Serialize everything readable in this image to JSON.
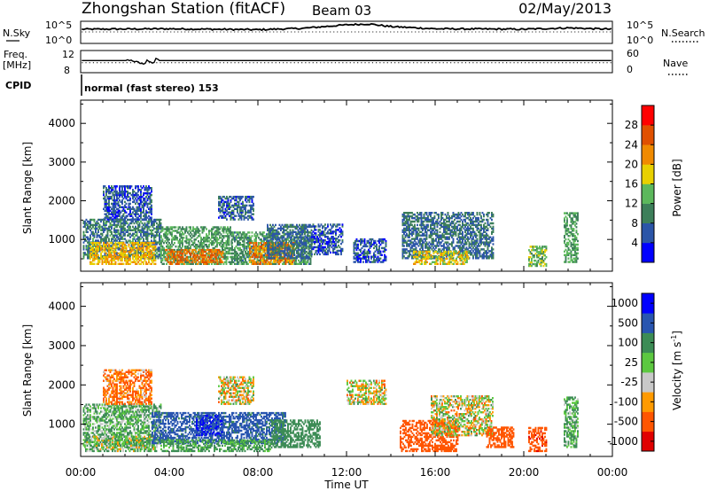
{
  "header": {
    "station": "Zhongshan Station (fitACF)",
    "beam": "Beam 03",
    "date": "02/May/2013"
  },
  "panel_nsky": {
    "left_label": "N.Sky",
    "left_ticks": [
      "10^5",
      "10^0"
    ],
    "right_ticks": [
      "10^5",
      "10^0"
    ],
    "right_label": "N.Search"
  },
  "panel_freq": {
    "left_label_1": "Freq.",
    "left_label_2": "[MHz]",
    "left_ticks": [
      "12",
      "8"
    ],
    "right_ticks": [
      "60",
      "0"
    ],
    "right_label": "Nave"
  },
  "panel_cpid": {
    "label": "CPID",
    "value": "normal (fast stereo) 153"
  },
  "x_axis": {
    "ticks": [
      "00:00",
      "04:00",
      "08:00",
      "12:00",
      "16:00",
      "20:00",
      "00:00"
    ],
    "label": "Time UT"
  },
  "power_panel": {
    "ylabel": "Slant Range [km]",
    "yticks": [
      "4000",
      "3000",
      "2000",
      "1000"
    ],
    "colorbar_label": "Power [dB]",
    "colorbar_ticks": [
      "28",
      "24",
      "20",
      "16",
      "12",
      "8",
      "4"
    ]
  },
  "velocity_panel": {
    "ylabel": "Slant Range [km]",
    "yticks": [
      "4000",
      "3000",
      "2000",
      "1000"
    ],
    "colorbar_label": "Velocity [m s",
    "colorbar_label_sup": "-1",
    "colorbar_label_end": "]",
    "colorbar_ticks": [
      "1000",
      "500",
      "100",
      "25",
      "-25",
      "-100",
      "-500",
      "-1000"
    ]
  },
  "colors": {
    "power_scale": [
      "#0000ff",
      "#2b55a8",
      "#3d7f5a",
      "#5cb85c",
      "#e8d000",
      "#f08a00",
      "#e05000",
      "#ff0000"
    ],
    "velocity_scale": [
      "#e00000",
      "#ff5500",
      "#ff9a00",
      "#c8c8c8",
      "#5cc840",
      "#3c8c55",
      "#2855b0",
      "#0000ff"
    ]
  },
  "chart_data": [
    {
      "type": "heatmap",
      "title": "Power",
      "xlabel": "Time UT",
      "ylabel": "Slant Range [km]",
      "x_range_hours": [
        0,
        24
      ],
      "ylim_km": [
        180,
        4600
      ],
      "colorbar": {
        "label": "Power [dB]",
        "range": [
          0,
          32
        ],
        "ticks": [
          4,
          8,
          12,
          16,
          20,
          24,
          28
        ]
      },
      "regions": [
        {
          "t": [
            0.1,
            3.6
          ],
          "r": [
            500,
            1500
          ],
          "level": 9
        },
        {
          "t": [
            1.0,
            3.2
          ],
          "r": [
            1500,
            2400
          ],
          "level": 6
        },
        {
          "t": [
            0.4,
            3.4
          ],
          "r": [
            350,
            900
          ],
          "level": 20
        },
        {
          "t": [
            3.6,
            6.8
          ],
          "r": [
            350,
            1300
          ],
          "level": 12
        },
        {
          "t": [
            3.8,
            6.4
          ],
          "r": [
            350,
            750
          ],
          "level": 24
        },
        {
          "t": [
            6.8,
            10.4
          ],
          "r": [
            350,
            1200
          ],
          "level": 11
        },
        {
          "t": [
            7.6,
            9.6
          ],
          "r": [
            350,
            900
          ],
          "level": 23
        },
        {
          "t": [
            8.4,
            10.4
          ],
          "r": [
            500,
            1400
          ],
          "level": 8
        },
        {
          "t": [
            10.4,
            11.8
          ],
          "r": [
            600,
            1400
          ],
          "level": 6
        },
        {
          "t": [
            6.2,
            7.8
          ],
          "r": [
            1500,
            2100
          ],
          "level": 7
        },
        {
          "t": [
            12.3,
            13.8
          ],
          "r": [
            400,
            1000
          ],
          "level": 6
        },
        {
          "t": [
            14.5,
            18.6
          ],
          "r": [
            500,
            1700
          ],
          "level": 8
        },
        {
          "t": [
            15.0,
            17.5
          ],
          "r": [
            350,
            700
          ],
          "level": 18
        },
        {
          "t": [
            20.2,
            21.0
          ],
          "r": [
            300,
            800
          ],
          "level": 14
        },
        {
          "t": [
            21.8,
            22.4
          ],
          "r": [
            400,
            1700
          ],
          "level": 12
        }
      ],
      "overview_series": {
        "nsky_log_counts": [
          {
            "hour": 0,
            "value": 3.2
          },
          {
            "hour": 4,
            "value": 3.3
          },
          {
            "hour": 8,
            "value": 3.1
          },
          {
            "hour": 10,
            "value": 3.4
          },
          {
            "hour": 12,
            "value": 4.2
          },
          {
            "hour": 13,
            "value": 4.4
          },
          {
            "hour": 14,
            "value": 3.8
          },
          {
            "hour": 16,
            "value": 3.3
          },
          {
            "hour": 20,
            "value": 3.2
          },
          {
            "hour": 22,
            "value": 3.5
          },
          {
            "hour": 24,
            "value": 3.2
          }
        ],
        "frequency_MHz": [
          {
            "hour": 0,
            "value": 10.2
          },
          {
            "hour": 2.2,
            "value": 10.2
          },
          {
            "hour": 2.6,
            "value": 9.8
          },
          {
            "hour": 3.0,
            "value": 10.0
          },
          {
            "hour": 3.4,
            "value": 10.2
          },
          {
            "hour": 24,
            "value": 10.2
          }
        ],
        "nave": 27
      }
    },
    {
      "type": "heatmap",
      "title": "Velocity",
      "xlabel": "Time UT",
      "ylabel": "Slant Range [km]",
      "x_range_hours": [
        0,
        24
      ],
      "ylim_km": [
        180,
        4600
      ],
      "colorbar": {
        "label": "Velocity [m s-1]",
        "range": [
          -1000,
          1000
        ],
        "ticks": [
          1000,
          500,
          100,
          25,
          -25,
          -100,
          -500,
          -1000
        ]
      },
      "regions": [
        {
          "t": [
            0.1,
            3.6
          ],
          "r": [
            400,
            1500
          ],
          "level": 100
        },
        {
          "t": [
            0.2,
            3.4
          ],
          "r": [
            300,
            700
          ],
          "level": 60
        },
        {
          "t": [
            1.0,
            3.2
          ],
          "r": [
            1500,
            2400
          ],
          "level": -120
        },
        {
          "t": [
            3.2,
            9.2
          ],
          "r": [
            500,
            1300
          ],
          "level": 600
        },
        {
          "t": [
            5.2,
            6.4
          ],
          "r": [
            700,
            1200
          ],
          "level": 1000
        },
        {
          "t": [
            3.6,
            8.6
          ],
          "r": [
            300,
            600
          ],
          "level": 150
        },
        {
          "t": [
            8.6,
            10.8
          ],
          "r": [
            400,
            1100
          ],
          "level": 250
        },
        {
          "t": [
            6.2,
            7.8
          ],
          "r": [
            1500,
            2200
          ],
          "level": 0
        },
        {
          "t": [
            12.0,
            13.8
          ],
          "r": [
            1500,
            2100
          ],
          "level": 0
        },
        {
          "t": [
            14.4,
            17.0
          ],
          "r": [
            300,
            1100
          ],
          "level": -250
        },
        {
          "t": [
            15.8,
            18.6
          ],
          "r": [
            700,
            1700
          ],
          "level": 0
        },
        {
          "t": [
            18.3,
            19.5
          ],
          "r": [
            400,
            900
          ],
          "level": -300
        },
        {
          "t": [
            20.2,
            21.0
          ],
          "r": [
            300,
            900
          ],
          "level": -400
        },
        {
          "t": [
            21.8,
            22.4
          ],
          "r": [
            400,
            1700
          ],
          "level": 120
        }
      ]
    }
  ]
}
